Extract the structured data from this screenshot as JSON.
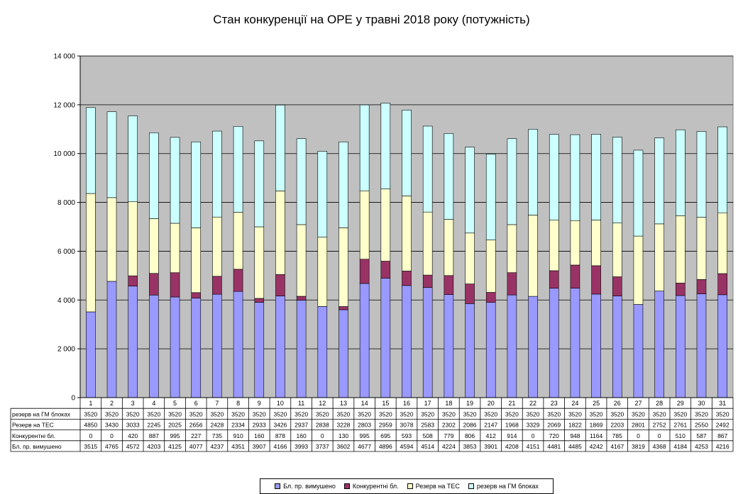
{
  "chart_data": {
    "type": "bar",
    "stacked": true,
    "title": "Стан конкуренції на ОРЕ  у травні 2018 року (потужність)",
    "ylim": [
      0,
      14000
    ],
    "yticks": [
      "0",
      "2 000",
      "4 000",
      "6 000",
      "8 000",
      "10 000",
      "12 000",
      "14 000"
    ],
    "grid": "horizontal",
    "legend_position": "bottom",
    "colors": {
      "plot_bg": "#c0c0c0",
      "bl": "#9999ff",
      "konk": "#993366",
      "tes": "#ffffcc",
      "gm": "#ccffff"
    },
    "categories": [
      "1",
      "2",
      "3",
      "4",
      "5",
      "6",
      "7",
      "8",
      "9",
      "10",
      "11",
      "12",
      "13",
      "14",
      "15",
      "16",
      "17",
      "18",
      "19",
      "20",
      "21",
      "22",
      "23",
      "24",
      "25",
      "26",
      "27",
      "28",
      "29",
      "30",
      "31"
    ],
    "series": [
      {
        "name": "Бл. пр. вимушено",
        "key": "bl",
        "values": [
          3515,
          4765,
          4572,
          4203,
          4125,
          4077,
          4237,
          4351,
          3907,
          4166,
          3993,
          3737,
          3602,
          4677,
          4896,
          4594,
          4514,
          4224,
          3853,
          3901,
          4208,
          4151,
          4481,
          4485,
          4242,
          4167,
          3819,
          4368,
          4184,
          4253,
          4216
        ]
      },
      {
        "name": "Конкурентні бл.",
        "key": "konk",
        "values": [
          0,
          0,
          420,
          887,
          995,
          227,
          735,
          910,
          160,
          878,
          160,
          0,
          130,
          995,
          695,
          593,
          508,
          779,
          806,
          412,
          914,
          0,
          720,
          948,
          1164,
          785,
          0,
          0,
          510,
          587,
          867
        ]
      },
      {
        "name": "Резерв на ТЕС",
        "key": "tes",
        "values": [
          4850,
          3430,
          3033,
          2245,
          2025,
          2656,
          2428,
          2334,
          2933,
          3426,
          2937,
          2838,
          3228,
          2803,
          2959,
          3078,
          2583,
          2302,
          2086,
          2147,
          1968,
          3329,
          2069,
          1822,
          1869,
          2203,
          2801,
          2752,
          2761,
          2550,
          2492
        ]
      },
      {
        "name": "резерв на ГМ блоках",
        "key": "gm",
        "values": [
          3520,
          3520,
          3520,
          3520,
          3520,
          3520,
          3520,
          3520,
          3520,
          3520,
          3520,
          3520,
          3520,
          3520,
          3520,
          3520,
          3520,
          3520,
          3520,
          3520,
          3520,
          3520,
          3520,
          3520,
          3520,
          3520,
          3520,
          3520,
          3520,
          3520,
          3520
        ]
      }
    ],
    "table_row_order": [
      "gm",
      "tes",
      "konk",
      "bl"
    ],
    "table_row_labels": {
      "gm": "резерв на ГМ блоках",
      "tes": "Резерв на ТЕС",
      "konk": "Конкурентні бл.",
      "bl": "Бл. пр. вимушено"
    }
  }
}
